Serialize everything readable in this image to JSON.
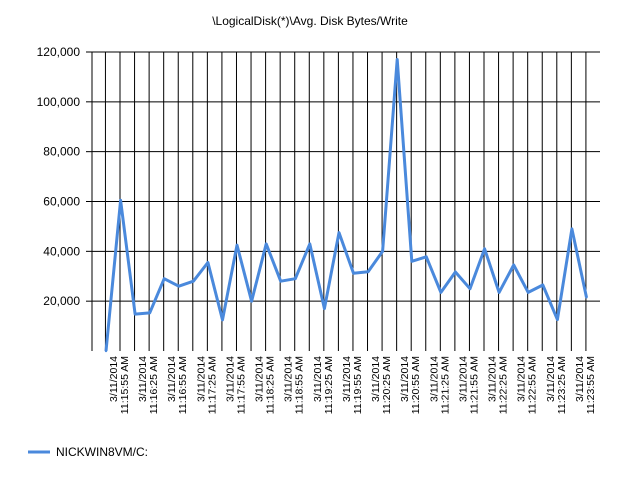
{
  "chart_data": {
    "type": "line",
    "title": "\\LogicalDisk(*)\\Avg. Disk Bytes/Write",
    "xlabel": "",
    "ylabel": "",
    "ylim": [
      0,
      120000
    ],
    "y_ticks": [
      "120,000",
      "100,000",
      "80,000",
      "60,000",
      "40,000",
      "20,000"
    ],
    "y_tick_values": [
      120000,
      100000,
      80000,
      60000,
      40000,
      20000
    ],
    "grid": true,
    "legend_position": "bottom-left",
    "x_labels": [
      {
        "date": "3/11/2014",
        "time": "11:15:55 AM"
      },
      {
        "date": "3/11/2014",
        "time": "11:16:25 AM"
      },
      {
        "date": "3/11/2014",
        "time": "11:16:55 AM"
      },
      {
        "date": "3/11/2014",
        "time": "11:17:25 AM"
      },
      {
        "date": "3/11/2014",
        "time": "11:17:55 AM"
      },
      {
        "date": "3/11/2014",
        "time": "11:18:25 AM"
      },
      {
        "date": "3/11/2014",
        "time": "11:18:55 AM"
      },
      {
        "date": "3/11/2014",
        "time": "11:19:25 AM"
      },
      {
        "date": "3/11/2014",
        "time": "11:19:55 AM"
      },
      {
        "date": "3/11/2014",
        "time": "11:20:25 AM"
      },
      {
        "date": "3/11/2014",
        "time": "11:20:55 AM"
      },
      {
        "date": "3/11/2014",
        "time": "11:21:25 AM"
      },
      {
        "date": "3/11/2014",
        "time": "11:21:55 AM"
      },
      {
        "date": "3/11/2014",
        "time": "11:22:25 AM"
      },
      {
        "date": "3/11/2014",
        "time": "11:22:55 AM"
      },
      {
        "date": "3/11/2014",
        "time": "11:23:25 AM"
      },
      {
        "date": "3/11/2014",
        "time": "11:23:55 AM"
      }
    ],
    "series": [
      {
        "name": "NICKWIN8VM/C:",
        "color": "#4a89dc",
        "values": [
          0,
          60500,
          14800,
          15300,
          29000,
          26000,
          28000,
          35500,
          12500,
          42500,
          20000,
          43000,
          28000,
          29000,
          43000,
          17000,
          47500,
          31200,
          31800,
          40000,
          117000,
          36000,
          37800,
          23500,
          31700,
          25000,
          41000,
          23500,
          34500,
          23500,
          26500,
          12600,
          49000,
          21500
        ]
      }
    ]
  }
}
